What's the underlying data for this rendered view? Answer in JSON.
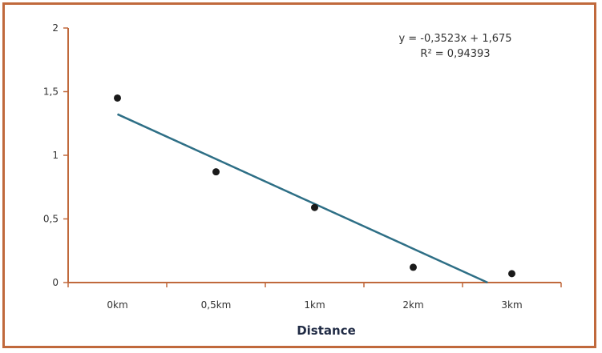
{
  "chart_data": {
    "type": "scatter",
    "categories": [
      "0km",
      "0,5km",
      "1km",
      "2km",
      "3km"
    ],
    "series": [
      {
        "values": [
          1.45,
          0.87,
          0.59,
          0.12,
          0.07
        ]
      }
    ],
    "trendline": {
      "type": "linear",
      "slope": -0.3523,
      "intercept": 1.675,
      "equation_label": "y = -0,3523x + 1,675",
      "r2_label": "R² = 0,94393"
    },
    "xlabel": "Distance",
    "ylabel": "",
    "ylim": [
      0,
      2
    ],
    "yticks": [
      "0",
      "0,5",
      "1",
      "1,5",
      "2"
    ],
    "grid": false,
    "colors": {
      "frame": "#c0693c",
      "axis": "#c0693c",
      "trend": "#2e6f86",
      "points": "#1a1a1a"
    }
  }
}
